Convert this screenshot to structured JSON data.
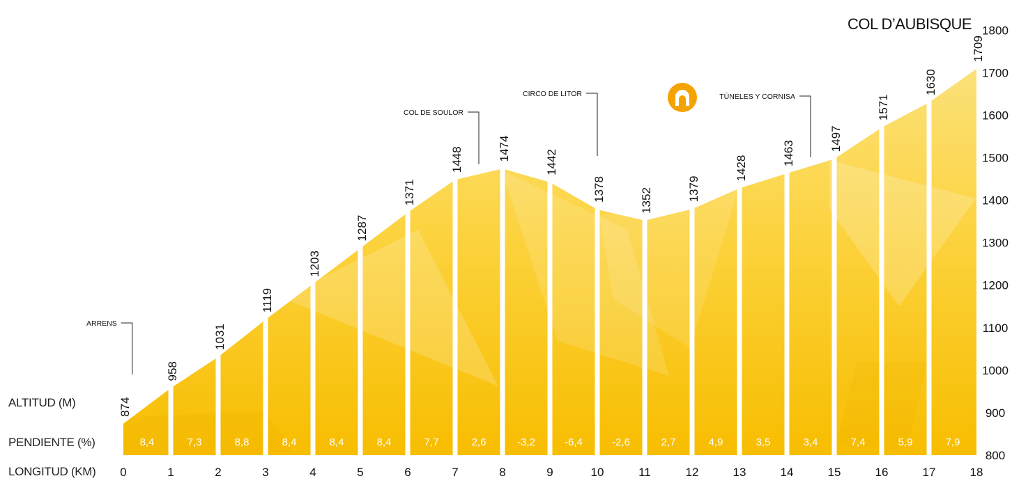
{
  "chart_data": {
    "type": "area",
    "title": "COL D’AUBISQUE",
    "row_labels": {
      "altitude": "ALTITUD (M)",
      "gradient": "PENDIENTE (%)",
      "length": "LONGITUD (KM)"
    },
    "x_unit": "km",
    "y_unit": "m",
    "x": [
      0,
      1,
      2,
      3,
      4,
      5,
      6,
      7,
      8,
      9,
      10,
      11,
      12,
      13,
      14,
      15,
      16,
      17,
      18
    ],
    "altitudes": [
      874,
      958,
      1031,
      1119,
      1203,
      1287,
      1371,
      1448,
      1474,
      1442,
      1378,
      1352,
      1379,
      1428,
      1463,
      1497,
      1571,
      1630,
      1709
    ],
    "gradients": [
      "8,4",
      "7,3",
      "8,8",
      "8,4",
      "8,4",
      "8,4",
      "7,7",
      "2,6",
      "-3,2",
      "-6,4",
      "-2,6",
      "2,7",
      "4,9",
      "3,5",
      "3,4",
      "7,4",
      "5,9",
      "7,9"
    ],
    "ylim": [
      800,
      1800
    ],
    "yticks": [
      800,
      900,
      1000,
      1100,
      1200,
      1300,
      1400,
      1500,
      1600,
      1700,
      1800
    ],
    "places": [
      {
        "name": "ARRENS",
        "km": 0.1
      },
      {
        "name": "COL DE SOULOR",
        "km": 7.5
      },
      {
        "name": "CIRCO DE LITOR",
        "km": 10
      },
      {
        "name": "TÚNELES Y CORNISA",
        "km": 14.5
      }
    ],
    "marker_icon": "tunnel-icon",
    "colors": {
      "fill_light": "#fbe17a",
      "fill_mid": "#fcd23c",
      "fill_dark": "#f7bd00",
      "icon": "#f5a300",
      "separator": "#ffffff"
    }
  }
}
